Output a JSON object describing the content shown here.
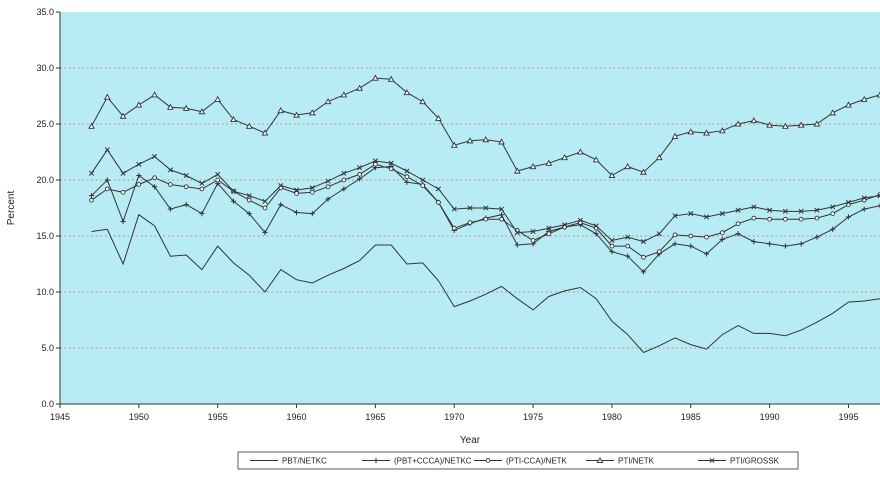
{
  "chart_data": {
    "type": "line",
    "xlabel": "Year",
    "ylabel": "Percent",
    "xlim": [
      1945,
      1997
    ],
    "ylim": [
      0,
      35
    ],
    "x_ticks": [
      1945,
      1950,
      1955,
      1960,
      1965,
      1970,
      1975,
      1980,
      1985,
      1990,
      1995
    ],
    "y_ticks": [
      "0.0",
      "5.0",
      "10.0",
      "15.0",
      "20.0",
      "25.0",
      "30.0",
      "35.0"
    ],
    "plot_background": "#b8ecf4",
    "gridlines": "horizontal-dashed",
    "grid_color": "#d05050",
    "legend_position": "bottom",
    "x": [
      1947,
      1948,
      1949,
      1950,
      1951,
      1952,
      1953,
      1954,
      1955,
      1956,
      1957,
      1958,
      1959,
      1960,
      1961,
      1962,
      1963,
      1964,
      1965,
      1966,
      1967,
      1968,
      1969,
      1970,
      1971,
      1972,
      1973,
      1974,
      1975,
      1976,
      1977,
      1978,
      1979,
      1980,
      1981,
      1982,
      1983,
      1984,
      1985,
      1986,
      1987,
      1988,
      1989,
      1990,
      1991,
      1992,
      1993,
      1994,
      1995,
      1996,
      1997
    ],
    "series": [
      {
        "name": "PBT/NETKC",
        "marker": "none",
        "values": [
          15.4,
          15.6,
          12.5,
          16.9,
          15.9,
          13.2,
          13.3,
          12.0,
          14.1,
          12.6,
          11.5,
          10.0,
          12.0,
          11.1,
          10.8,
          11.5,
          12.1,
          12.8,
          14.2,
          14.2,
          12.5,
          12.6,
          11.0,
          8.7,
          9.2,
          9.8,
          10.5,
          9.4,
          8.4,
          9.6,
          10.1,
          10.4,
          9.4,
          7.4,
          6.2,
          4.6,
          5.2,
          5.9,
          5.3,
          4.9,
          6.2,
          7.0,
          6.3,
          6.3,
          6.1,
          6.6,
          7.3,
          8.1,
          9.1,
          9.2,
          9.4
        ]
      },
      {
        "name": "(PBT+CCCA)/NETKC",
        "marker": "plus",
        "values": [
          18.6,
          20.0,
          16.3,
          20.4,
          19.4,
          17.4,
          17.8,
          17.0,
          19.7,
          18.1,
          17.0,
          15.3,
          17.8,
          17.1,
          17.0,
          18.3,
          19.2,
          20.1,
          21.1,
          21.2,
          19.8,
          19.6,
          18.0,
          15.5,
          16.1,
          16.6,
          16.9,
          14.2,
          14.3,
          15.4,
          15.8,
          16.0,
          15.2,
          13.6,
          13.2,
          11.8,
          13.4,
          14.3,
          14.1,
          13.4,
          14.7,
          15.2,
          14.5,
          14.3,
          14.1,
          14.3,
          14.9,
          15.6,
          16.7,
          17.4,
          17.7
        ]
      },
      {
        "name": "(PTI-CCA)/NETK",
        "marker": "circle",
        "values": [
          18.2,
          19.2,
          18.9,
          19.6,
          20.2,
          19.6,
          19.4,
          19.2,
          20.0,
          19.0,
          18.2,
          17.5,
          19.3,
          18.8,
          18.9,
          19.4,
          20.0,
          20.5,
          21.4,
          21.0,
          20.3,
          19.5,
          18.0,
          15.7,
          16.2,
          16.5,
          16.5,
          15.5,
          14.6,
          15.2,
          15.8,
          16.2,
          15.7,
          14.1,
          14.1,
          13.1,
          13.6,
          15.1,
          15.0,
          14.9,
          15.3,
          16.1,
          16.6,
          16.5,
          16.5,
          16.5,
          16.6,
          17.0,
          17.8,
          18.2,
          18.7
        ]
      },
      {
        "name": "PTI/NETK",
        "marker": "triangle",
        "values": [
          24.8,
          27.4,
          25.7,
          26.7,
          27.6,
          26.5,
          26.4,
          26.1,
          27.2,
          25.4,
          24.8,
          24.2,
          26.2,
          25.8,
          26.0,
          27.0,
          27.6,
          28.2,
          29.1,
          29.0,
          27.8,
          27.0,
          25.5,
          23.1,
          23.5,
          23.6,
          23.4,
          20.8,
          21.2,
          21.5,
          22.0,
          22.5,
          21.8,
          20.4,
          21.2,
          20.7,
          22.0,
          23.9,
          24.3,
          24.2,
          24.4,
          25.0,
          25.3,
          24.9,
          24.8,
          24.9,
          25.0,
          26.0,
          26.7,
          27.2,
          27.6
        ]
      },
      {
        "name": "PTI/GROSSK",
        "marker": "x",
        "values": [
          20.6,
          22.7,
          20.6,
          21.4,
          22.1,
          20.9,
          20.4,
          19.7,
          20.5,
          19.0,
          18.6,
          18.1,
          19.5,
          19.1,
          19.3,
          19.9,
          20.6,
          21.1,
          21.7,
          21.5,
          20.8,
          20.0,
          19.2,
          17.4,
          17.5,
          17.5,
          17.4,
          15.3,
          15.4,
          15.7,
          16.0,
          16.4,
          15.9,
          14.6,
          14.9,
          14.5,
          15.2,
          16.8,
          17.0,
          16.7,
          17.0,
          17.3,
          17.6,
          17.3,
          17.2,
          17.2,
          17.3,
          17.6,
          18.0,
          18.4,
          18.6
        ]
      }
    ]
  }
}
